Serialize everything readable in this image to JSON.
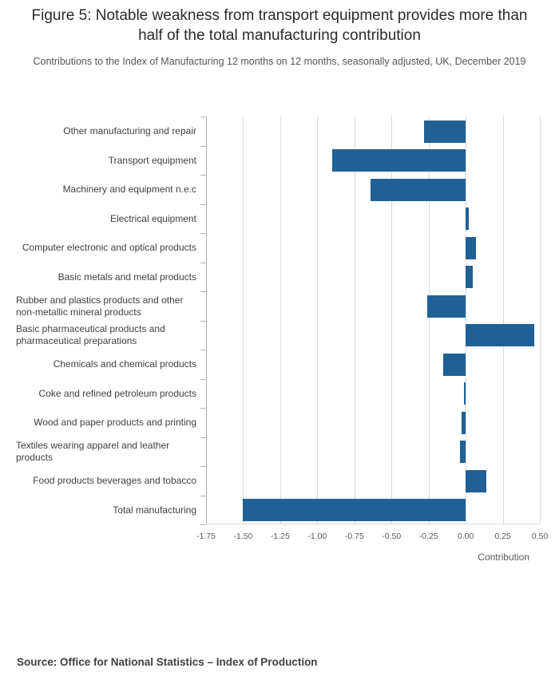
{
  "chart_data": {
    "type": "bar",
    "orientation": "horizontal",
    "title": "Figure 5: Notable weakness from transport equipment provides more than half of the total manufacturing contribution",
    "subtitle": "Contributions to the Index of Manufacturing 12 months on 12 months, seasonally adjusted, UK, December 2019",
    "categories": [
      "Other manufacturing and repair",
      "Transport equipment",
      "Machinery and equipment n.e.c",
      "Electrical equipment",
      "Computer electronic and optical products",
      "Basic metals and metal products",
      "Rubber and plastics products and other non-metallic mineral products",
      "Basic pharmaceutical products and pharmaceutical preparations",
      "Chemicals and chemical products",
      "Coke and refined petroleum products",
      "Wood and paper products and printing",
      "Textiles wearing apparel and leather products",
      "Food products beverages and tobacco",
      "Total manufacturing"
    ],
    "values": [
      -0.28,
      -0.9,
      -0.64,
      0.02,
      0.07,
      0.05,
      -0.26,
      0.46,
      -0.15,
      -0.01,
      -0.03,
      -0.04,
      0.14,
      -1.5
    ],
    "xlabel": "Contribution",
    "xlim": [
      -1.75,
      0.5
    ],
    "xticks": [
      -1.75,
      -1.5,
      -1.25,
      -1.0,
      -0.75,
      -0.5,
      -0.25,
      0.0,
      0.25,
      0.5
    ],
    "xtick_labels": [
      "-1.75",
      "-1.50",
      "-1.25",
      "-1.00",
      "-0.75",
      "-0.50",
      "-0.25",
      "0.00",
      "0.25",
      "0.50"
    ],
    "bar_color": "#206095",
    "grid": true,
    "legend": "none"
  },
  "footer": {
    "source": "Source: Office for National Statistics – Index of Production"
  }
}
